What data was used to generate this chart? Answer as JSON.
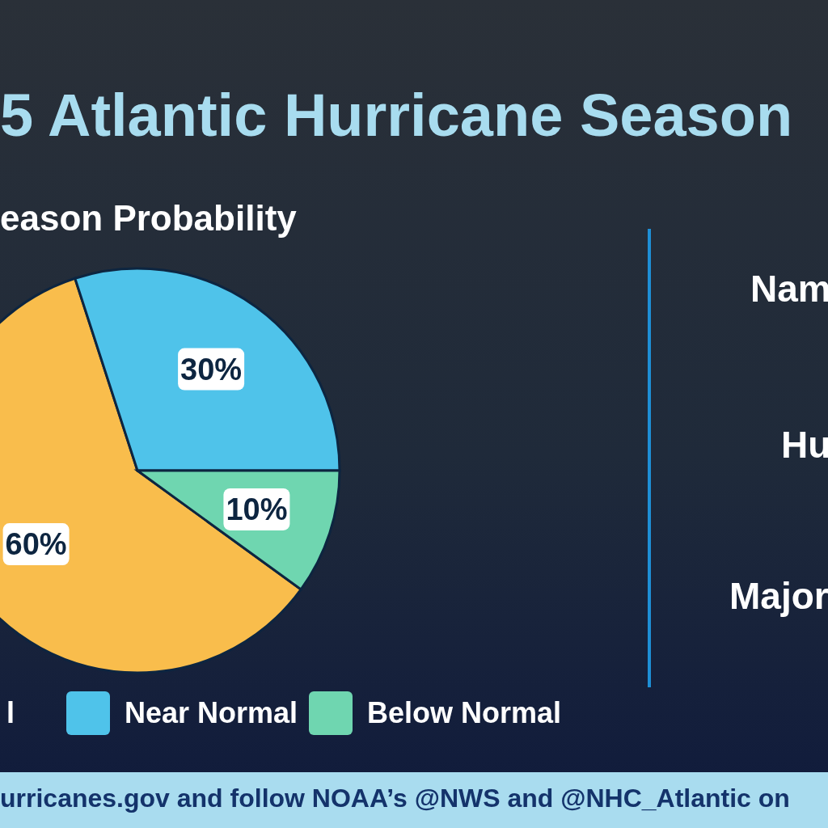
{
  "chart_data": {
    "type": "pie",
    "title": "5 Atlantic Hurricane Season",
    "subtitle": "eason Probability",
    "categories": [
      "l",
      "Near Normal",
      "Below Normal"
    ],
    "values": [
      60,
      30,
      10
    ],
    "colors": [
      "#f9bd4c",
      "#4fc3ea",
      "#6fd6b0"
    ],
    "value_labels": [
      "60%",
      "30%",
      "10%"
    ],
    "legend": "bottom",
    "annotations": [
      "Nam",
      "Hu",
      "Major",
      "urricanes.gov and follow NOAA’s @NWS and @NHC_Atlantic on"
    ]
  }
}
